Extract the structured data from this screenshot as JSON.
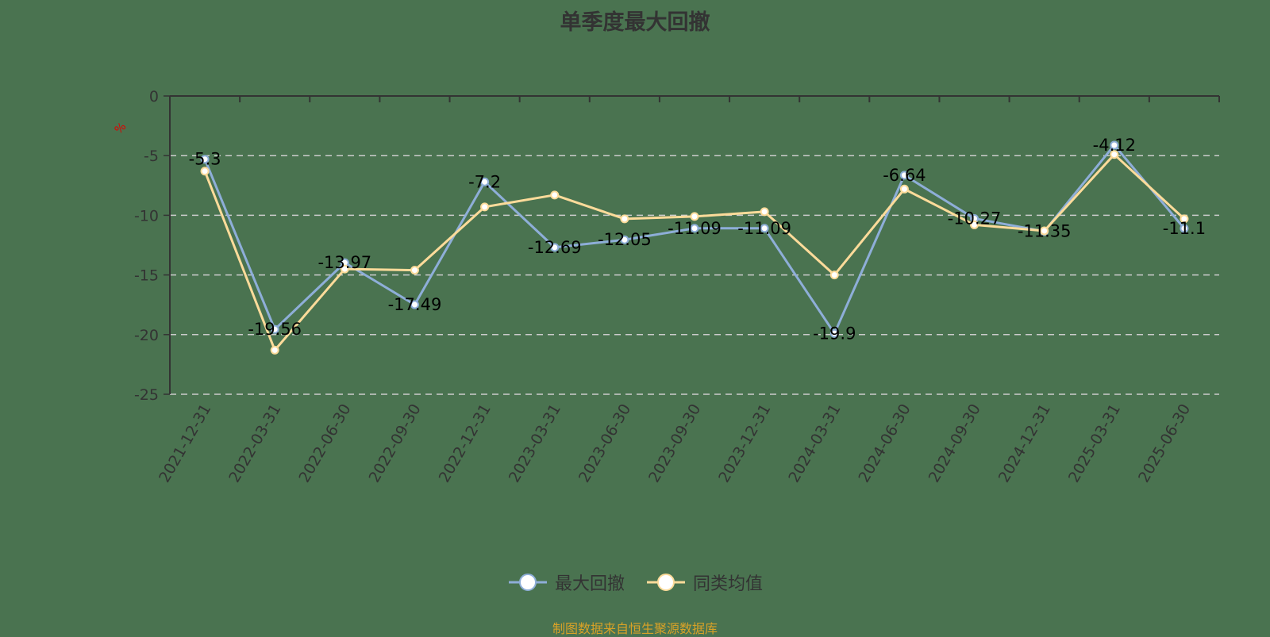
{
  "title": "单季度最大回撤",
  "source_note": "制图数据来自恒生聚源数据库",
  "colors": {
    "background": "#4a7350",
    "series_max_drawdown": "#8eaed8",
    "series_peer_avg": "#fcdb9a",
    "axis": "#333333",
    "grid": "#cccccc",
    "unit": "#e00000",
    "source": "#d9a227"
  },
  "legend": [
    {
      "name": "最大回撤",
      "icon": "circle-line-icon"
    },
    {
      "name": "同类均值",
      "icon": "circle-line-icon"
    }
  ],
  "chart_data": {
    "type": "line",
    "title": "单季度最大回撤",
    "xlabel": "",
    "ylabel": "%",
    "ylim": [
      -25,
      0
    ],
    "yticks": [
      0,
      -5,
      -10,
      -15,
      -20,
      -25
    ],
    "grid": "horizontal dashed",
    "legend_position": "bottom",
    "categories": [
      "2021-12-31",
      "2022-03-31",
      "2022-06-30",
      "2022-09-30",
      "2022-12-31",
      "2023-03-31",
      "2023-06-30",
      "2023-09-30",
      "2023-12-31",
      "2024-03-31",
      "2024-06-30",
      "2024-09-30",
      "2024-12-31",
      "2025-03-31",
      "2025-06-30"
    ],
    "series": [
      {
        "name": "最大回撤",
        "values": [
          -5.3,
          -19.56,
          -13.97,
          -17.49,
          -7.2,
          -12.69,
          -12.05,
          -11.09,
          -11.09,
          -19.9,
          -6.64,
          -10.27,
          -11.35,
          -4.12,
          -11.1
        ],
        "labels_shown": true
      },
      {
        "name": "同类均值",
        "values": [
          -6.3,
          -21.3,
          -14.5,
          -14.6,
          -9.3,
          -8.3,
          -10.3,
          -10.1,
          -9.7,
          -15.0,
          -7.8,
          -10.8,
          -11.3,
          -4.9,
          -10.3
        ],
        "labels_shown": false
      }
    ]
  }
}
